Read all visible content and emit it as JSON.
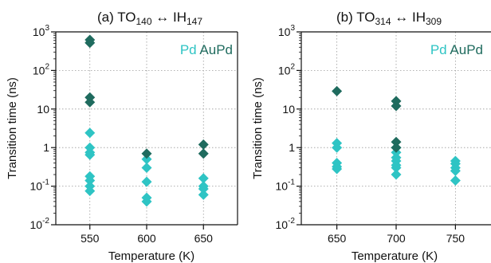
{
  "chart_data": [
    {
      "type": "scatter",
      "panel_label": "(a)",
      "title_left": "TO",
      "title_left_sub": "140",
      "title_arrow": "↔",
      "title_right": "IH",
      "title_right_sub": "147",
      "xlabel": "Temperature (K)",
      "ylabel": "Transition time (ns)",
      "yscale": "log",
      "ylim": [
        0.01,
        1000
      ],
      "xlim": [
        520,
        680
      ],
      "xticks": [
        550,
        600,
        650
      ],
      "yticks": [
        {
          "value": 0.01,
          "base": "10",
          "exp": "-2"
        },
        {
          "value": 0.1,
          "base": "10",
          "exp": "-1"
        },
        {
          "value": 1,
          "base": "1",
          "exp": ""
        },
        {
          "value": 10,
          "base": "10",
          "exp": ""
        },
        {
          "value": 100,
          "base": "10",
          "exp": "2"
        },
        {
          "value": 1000,
          "base": "10",
          "exp": "3"
        }
      ],
      "grid": true,
      "marker": "diamond",
      "legend_position": "top-right",
      "series": [
        {
          "name": "Pd",
          "color": "#2ec4c4",
          "x": [
            550,
            550,
            550,
            550,
            550,
            550,
            550,
            550,
            600,
            600,
            600,
            600,
            600,
            650,
            650,
            650,
            650
          ],
          "y": [
            2.4,
            1.0,
            0.65,
            0.18,
            0.14,
            0.1,
            0.075,
            0.75,
            0.5,
            0.3,
            0.13,
            0.05,
            0.04,
            0.16,
            0.1,
            0.085,
            0.06
          ]
        },
        {
          "name": "AuPd",
          "color": "#1f6b5e",
          "x": [
            550,
            550,
            550,
            550,
            600,
            650,
            650
          ],
          "y": [
            620,
            520,
            20,
            15,
            0.7,
            1.2,
            0.7
          ]
        }
      ]
    },
    {
      "type": "scatter",
      "panel_label": "(b)",
      "title_left": "TO",
      "title_left_sub": "314",
      "title_arrow": "↔",
      "title_right": "IH",
      "title_right_sub": "309",
      "xlabel": "Temperature (K)",
      "ylabel": "Transition time (ns)",
      "yscale": "log",
      "ylim": [
        0.01,
        1000
      ],
      "xlim": [
        620,
        780
      ],
      "xticks": [
        650,
        700,
        750
      ],
      "yticks": [
        {
          "value": 0.01,
          "base": "10",
          "exp": "-2"
        },
        {
          "value": 0.1,
          "base": "10",
          "exp": "-1"
        },
        {
          "value": 1,
          "base": "1",
          "exp": ""
        },
        {
          "value": 10,
          "base": "10",
          "exp": ""
        },
        {
          "value": 100,
          "base": "10",
          "exp": "2"
        },
        {
          "value": 1000,
          "base": "10",
          "exp": "3"
        }
      ],
      "grid": true,
      "marker": "diamond",
      "legend_position": "top-right",
      "series": [
        {
          "name": "Pd",
          "color": "#2ec4c4",
          "x": [
            650,
            650,
            650,
            650,
            650,
            700,
            700,
            700,
            700,
            700,
            700,
            700,
            750,
            750,
            750,
            750,
            750
          ],
          "y": [
            1.3,
            1.0,
            0.4,
            0.32,
            0.28,
            1.0,
            0.75,
            0.55,
            0.45,
            0.35,
            0.3,
            0.2,
            0.45,
            0.38,
            0.3,
            0.25,
            0.14
          ]
        },
        {
          "name": "AuPd",
          "color": "#1f6b5e",
          "x": [
            650,
            700,
            700,
            700,
            700
          ],
          "y": [
            29,
            16,
            12,
            1.4,
            1.0
          ]
        }
      ]
    }
  ]
}
